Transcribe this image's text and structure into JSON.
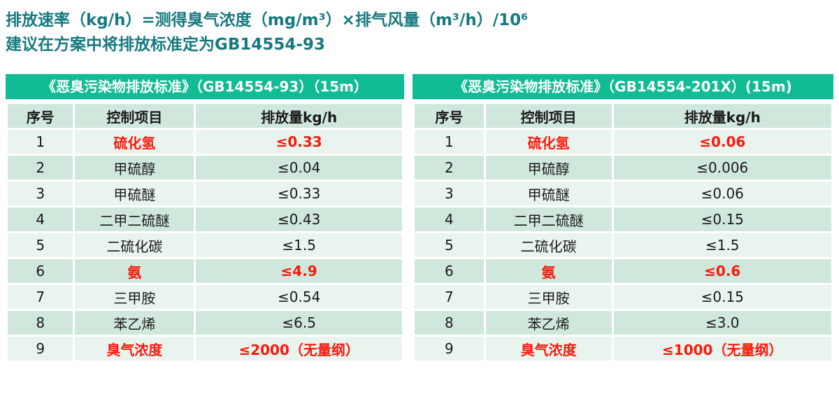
{
  "page": {
    "heading_line1": "排放速率（kg/h）=测得臭气浓度（mg/m³）×排气风量（m³/h）/10⁶",
    "heading_line2": "建议在方案中将排放标准定为GB14554-93"
  },
  "colors": {
    "accent_green": "#10bc94",
    "row_light": "#eaf4ef",
    "row_dark": "#d0e8dc",
    "heading_teal": "#16797f",
    "highlight_red": "#fa1a0d"
  },
  "tables": [
    {
      "title": "《恶臭污染物排放标准》（GB14554-93）（15m）",
      "columns": [
        "序号",
        "控制项目",
        "排放量kg/h"
      ],
      "rows": [
        {
          "no": "1",
          "item": "硫化氢",
          "limit": "≤0.33",
          "highlight": true
        },
        {
          "no": "2",
          "item": "甲硫醇",
          "limit": "≤0.04",
          "highlight": false
        },
        {
          "no": "3",
          "item": "甲硫醚",
          "limit": "≤0.33",
          "highlight": false
        },
        {
          "no": "4",
          "item": "二甲二硫醚",
          "limit": "≤0.43",
          "highlight": false
        },
        {
          "no": "5",
          "item": "二硫化碳",
          "limit": "≤1.5",
          "highlight": false
        },
        {
          "no": "6",
          "item": "氨",
          "limit": "≤4.9",
          "highlight": true
        },
        {
          "no": "7",
          "item": "三甲胺",
          "limit": "≤0.54",
          "highlight": false
        },
        {
          "no": "8",
          "item": "苯乙烯",
          "limit": "≤6.5",
          "highlight": false
        },
        {
          "no": "9",
          "item": "臭气浓度",
          "limit": "≤2000（无量纲）",
          "highlight": true
        }
      ]
    },
    {
      "title": "《恶臭污染物排放标准》（GB14554-201X）(15m)",
      "columns": [
        "序号",
        "控制项目",
        "排放量kg/h"
      ],
      "rows": [
        {
          "no": "1",
          "item": "硫化氢",
          "limit": "≤0.06",
          "highlight": true
        },
        {
          "no": "2",
          "item": "甲硫醇",
          "limit": "≤0.006",
          "highlight": false
        },
        {
          "no": "3",
          "item": "甲硫醚",
          "limit": "≤0.06",
          "highlight": false
        },
        {
          "no": "4",
          "item": "二甲二硫醚",
          "limit": "≤0.15",
          "highlight": false
        },
        {
          "no": "5",
          "item": "二硫化碳",
          "limit": "≤1.5",
          "highlight": false
        },
        {
          "no": "6",
          "item": "氨",
          "limit": "≤0.6",
          "highlight": true
        },
        {
          "no": "7",
          "item": "三甲胺",
          "limit": "≤0.15",
          "highlight": false
        },
        {
          "no": "8",
          "item": "苯乙烯",
          "limit": "≤3.0",
          "highlight": false
        },
        {
          "no": "9",
          "item": "臭气浓度",
          "limit": "≤1000（无量纲）",
          "highlight": true
        }
      ]
    }
  ]
}
